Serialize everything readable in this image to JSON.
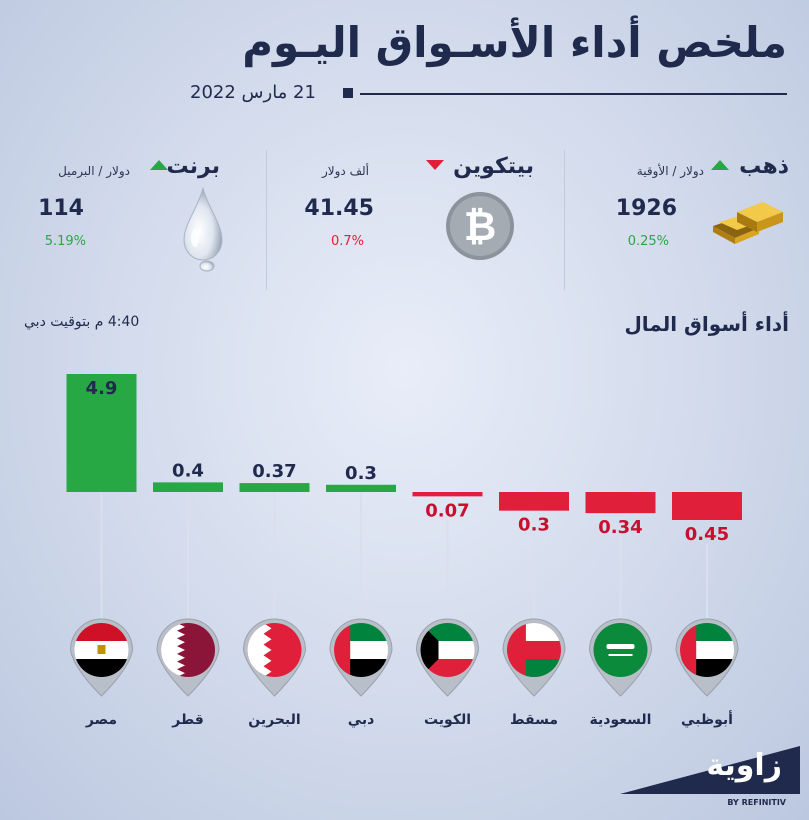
{
  "header": {
    "title": "ملخص أداء الأسـواق اليـوم",
    "date": "21 مارس 2022"
  },
  "commodities": [
    {
      "name": "ذهب",
      "unit": "دولار / الأوقية",
      "value": "1926",
      "change": "0.25%",
      "direction": "up",
      "icon": "gold-bars-icon"
    },
    {
      "name": "بيتكوين",
      "unit": "ألف دولار",
      "value": "41.45",
      "change": "0.7%",
      "direction": "down",
      "icon": "bitcoin-icon"
    },
    {
      "name": "برنت",
      "unit": "دولار / البرميل",
      "value": "114",
      "change": "5.19%",
      "direction": "up",
      "icon": "oil-drop-icon"
    }
  ],
  "section": {
    "title": "أداء أسواق المال",
    "time_note": "4:40 م بتوقيت دبي"
  },
  "colors": {
    "up": "#28a745",
    "down": "#e0203a",
    "navy": "#1f2a4d"
  },
  "chart_data": {
    "type": "bar",
    "categories": [
      "أبوظبي",
      "السعودية",
      "مسقط",
      "الكويت",
      "دبي",
      "البحرين",
      "قطر",
      "مصر"
    ],
    "values": [
      -0.45,
      -0.34,
      -0.3,
      -0.07,
      0.3,
      0.37,
      0.4,
      4.9
    ],
    "labels": [
      "0.45",
      "0.34",
      "0.3",
      "0.07",
      "0.3",
      "0.37",
      "0.4",
      "4.9"
    ],
    "flags": [
      "uae-flag-icon",
      "saudi-flag-icon",
      "oman-flag-icon",
      "kuwait-flag-icon",
      "uae-flag-icon",
      "bahrain-flag-icon",
      "qatar-flag-icon",
      "egypt-flag-icon"
    ],
    "title": "",
    "xlabel": "",
    "ylabel": ""
  },
  "brand": {
    "name": "زاوية",
    "sub": "BY REFINITIV"
  }
}
